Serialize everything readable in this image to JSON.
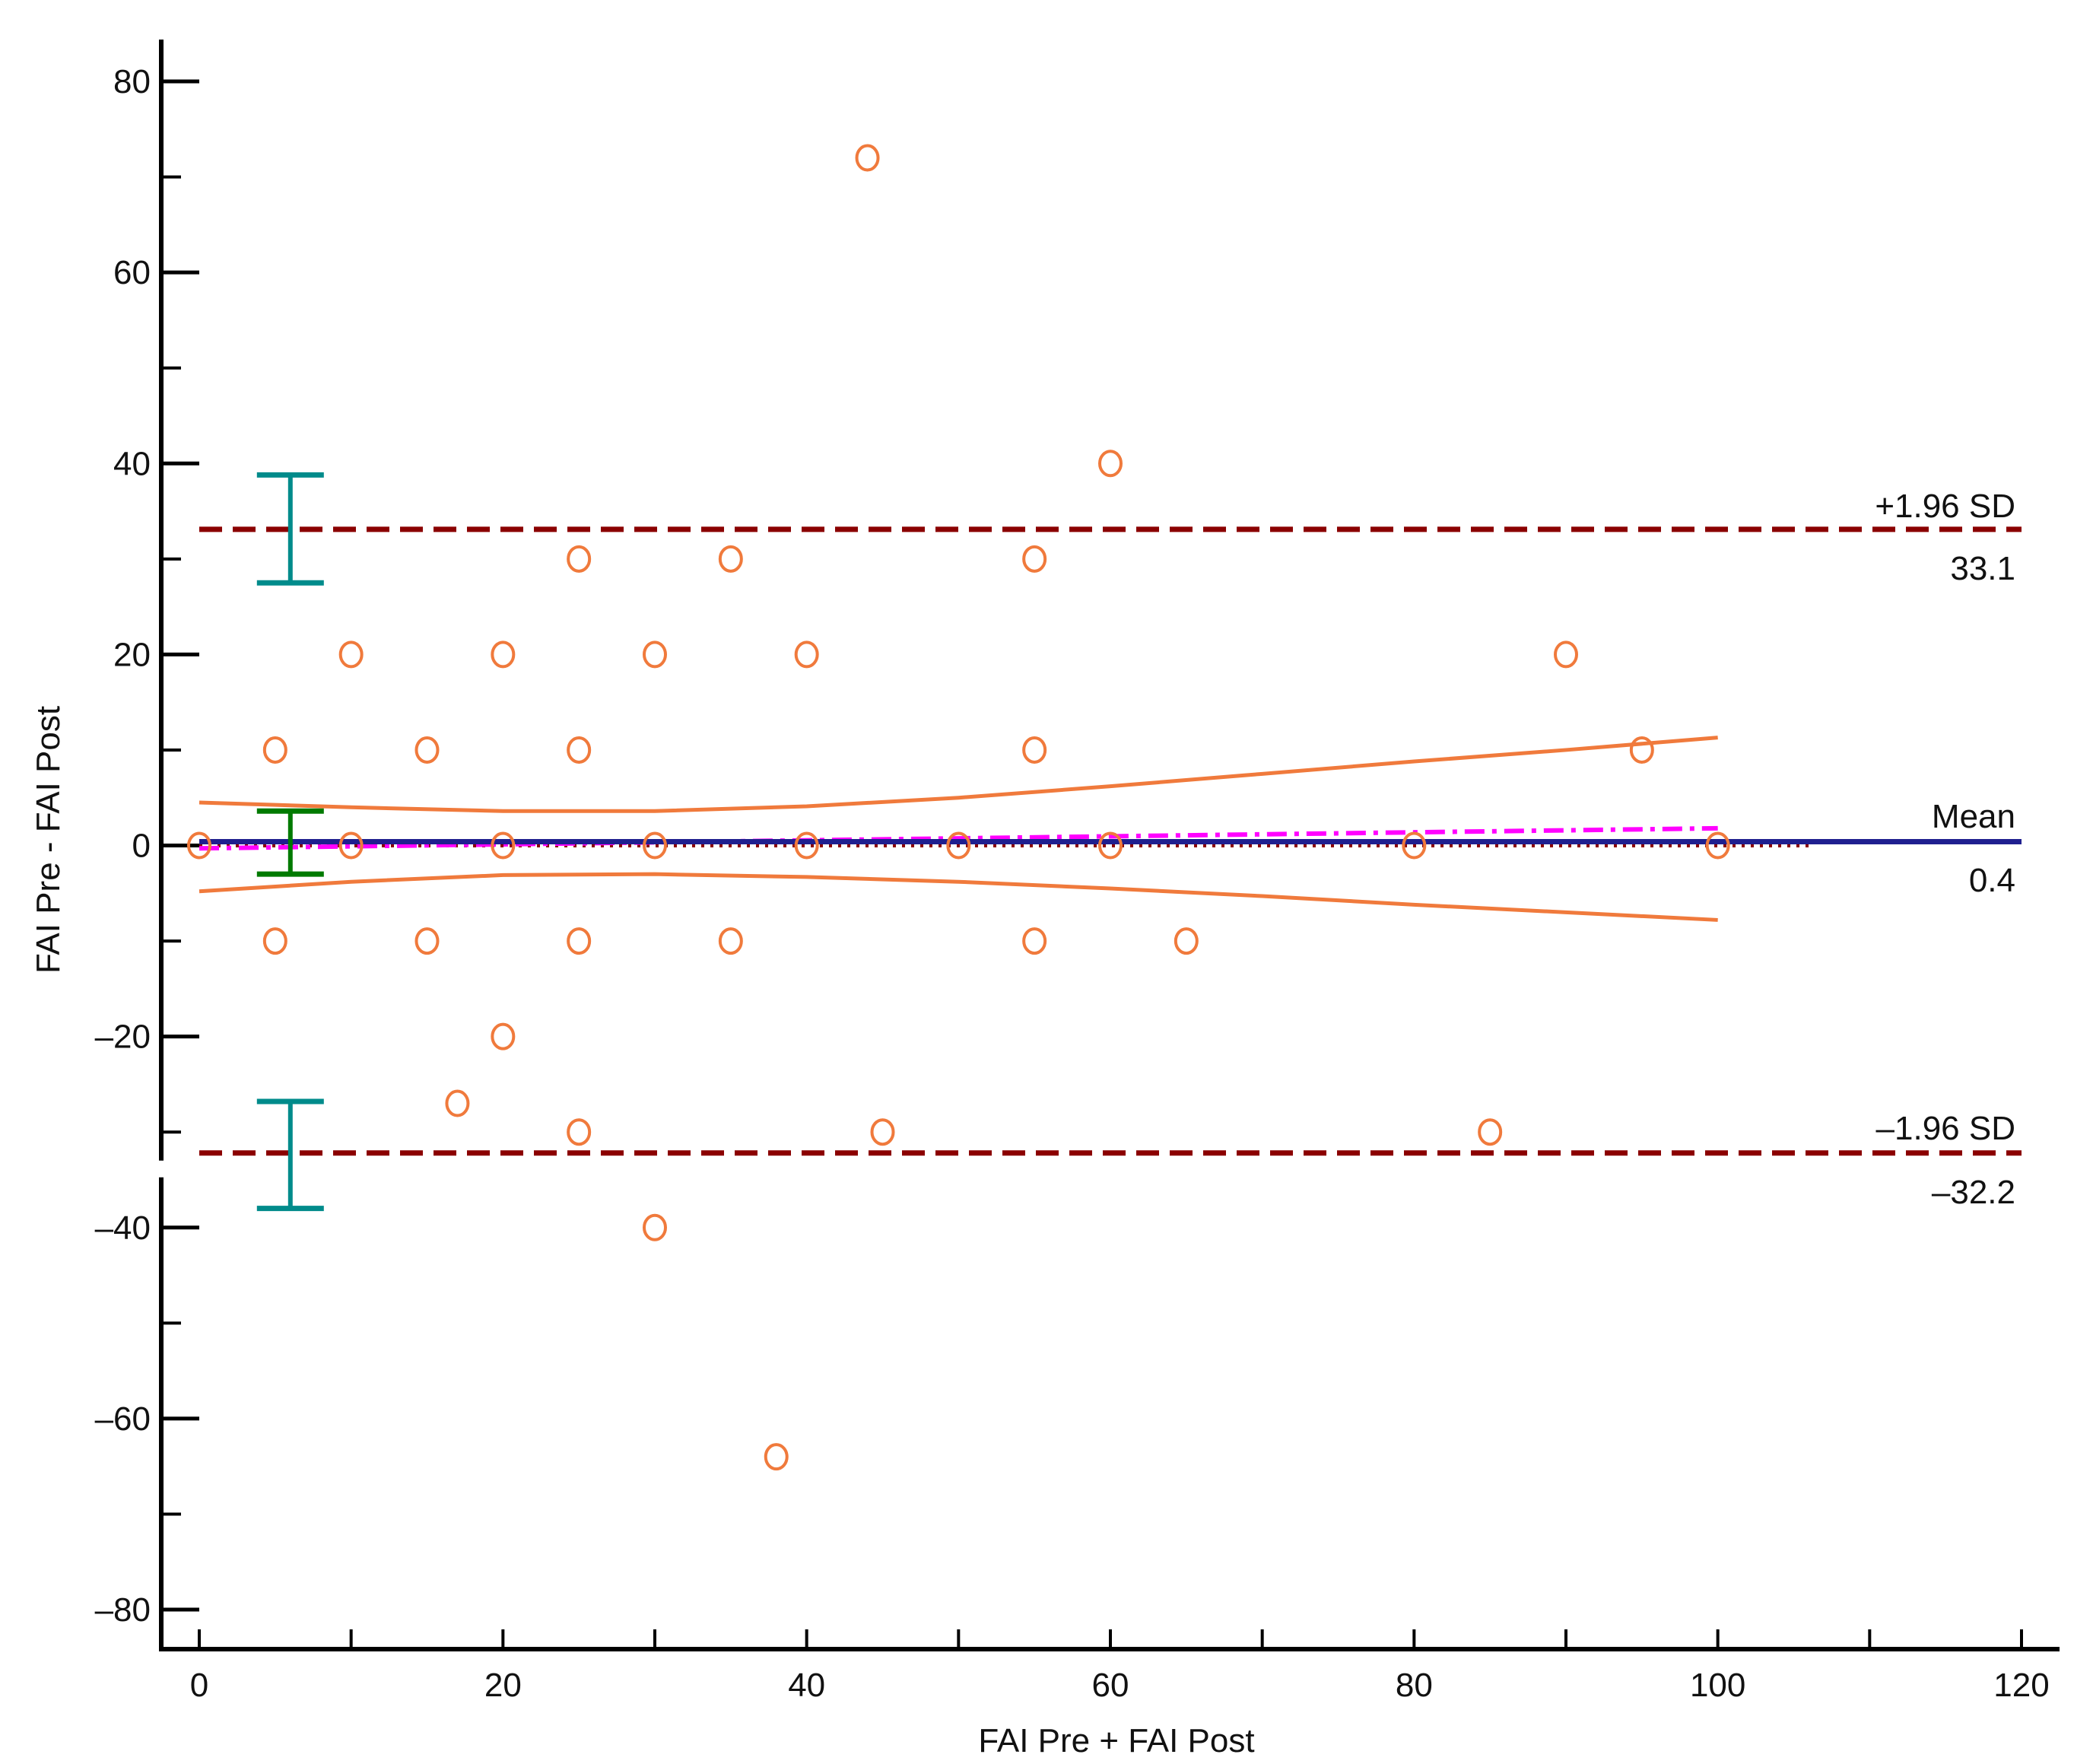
{
  "chart_data": {
    "type": "scatter",
    "title": "",
    "xlabel": "FAI Pre + FAI Post",
    "ylabel": "FAI Pre - FAI Post",
    "xlim": [
      0,
      120
    ],
    "ylim": [
      -80,
      80
    ],
    "x_ticks": [
      0,
      20,
      40,
      60,
      80,
      100,
      120
    ],
    "x_minor_ticks": [
      10,
      30,
      50,
      70,
      90,
      110
    ],
    "y_ticks": [
      -80,
      -60,
      -40,
      -20,
      0,
      20,
      40,
      60,
      80
    ],
    "y_minor_ticks": [
      -70,
      -50,
      -30,
      -10,
      10,
      30,
      50,
      70
    ],
    "grid": false,
    "colors": {
      "points": "#f07a3c",
      "mean_line": "#1f1f8f",
      "limits": "#8b0000",
      "regression": "#ff00ff",
      "confidence_band": "#f07a3c",
      "ci_limits": "#008b8b",
      "ci_mean": "#007a00",
      "axis": "#000000"
    },
    "points": [
      {
        "x": 0,
        "y": 0
      },
      {
        "x": 5,
        "y": 10
      },
      {
        "x": 5,
        "y": -10
      },
      {
        "x": 10,
        "y": 20
      },
      {
        "x": 10,
        "y": 0
      },
      {
        "x": 15,
        "y": 10
      },
      {
        "x": 15,
        "y": -10
      },
      {
        "x": 17,
        "y": -27
      },
      {
        "x": 20,
        "y": 20
      },
      {
        "x": 20,
        "y": 0
      },
      {
        "x": 20,
        "y": -20
      },
      {
        "x": 25,
        "y": 30
      },
      {
        "x": 25,
        "y": 10
      },
      {
        "x": 25,
        "y": -10
      },
      {
        "x": 25,
        "y": -30
      },
      {
        "x": 30,
        "y": 20
      },
      {
        "x": 30,
        "y": 0
      },
      {
        "x": 30,
        "y": -40
      },
      {
        "x": 35,
        "y": 30
      },
      {
        "x": 35,
        "y": -10
      },
      {
        "x": 38,
        "y": -64
      },
      {
        "x": 40,
        "y": 20
      },
      {
        "x": 40,
        "y": 0
      },
      {
        "x": 44,
        "y": 72
      },
      {
        "x": 45,
        "y": -30
      },
      {
        "x": 50,
        "y": 0
      },
      {
        "x": 55,
        "y": 30
      },
      {
        "x": 55,
        "y": 10
      },
      {
        "x": 55,
        "y": -10
      },
      {
        "x": 60,
        "y": 40
      },
      {
        "x": 60,
        "y": 0
      },
      {
        "x": 65,
        "y": -10
      },
      {
        "x": 80,
        "y": 0
      },
      {
        "x": 85,
        "y": -30
      },
      {
        "x": 90,
        "y": 20
      },
      {
        "x": 95,
        "y": 10
      },
      {
        "x": 100,
        "y": 0
      }
    ],
    "mean": {
      "value": 0.4,
      "label": "Mean",
      "value_label": "0.4"
    },
    "upper_limit": {
      "value": 33.1,
      "label": "+1.96 SD",
      "value_label": "33.1"
    },
    "lower_limit": {
      "value": -32.2,
      "label": "–1.96 SD",
      "value_label": "–32.2"
    },
    "ci_bars": [
      {
        "x": 6,
        "low": 27.5,
        "high": 38.8,
        "kind": "upper"
      },
      {
        "x": 6,
        "low": -3,
        "high": 3.6,
        "kind": "mean"
      },
      {
        "x": 6,
        "low": -38,
        "high": -26.8,
        "kind": "lower"
      }
    ],
    "regression_line": {
      "x": [
        0,
        100
      ],
      "y": [
        -0.3,
        1.8
      ]
    },
    "confidence_band_upper": {
      "x": [
        0,
        10,
        20,
        30,
        40,
        50,
        60,
        70,
        80,
        90,
        100
      ],
      "y": [
        4.5,
        4.0,
        3.6,
        3.6,
        4.1,
        5.0,
        6.2,
        7.5,
        8.8,
        10.0,
        11.3
      ]
    },
    "confidence_band_lower": {
      "x": [
        0,
        10,
        20,
        30,
        40,
        50,
        60,
        70,
        80,
        90,
        100
      ],
      "y": [
        -4.8,
        -3.8,
        -3.1,
        -3.0,
        -3.3,
        -3.8,
        -4.5,
        -5.3,
        -6.2,
        -7.0,
        -7.8
      ]
    },
    "zero_dotted_line": {
      "x": [
        0,
        106
      ],
      "y": 0
    }
  }
}
